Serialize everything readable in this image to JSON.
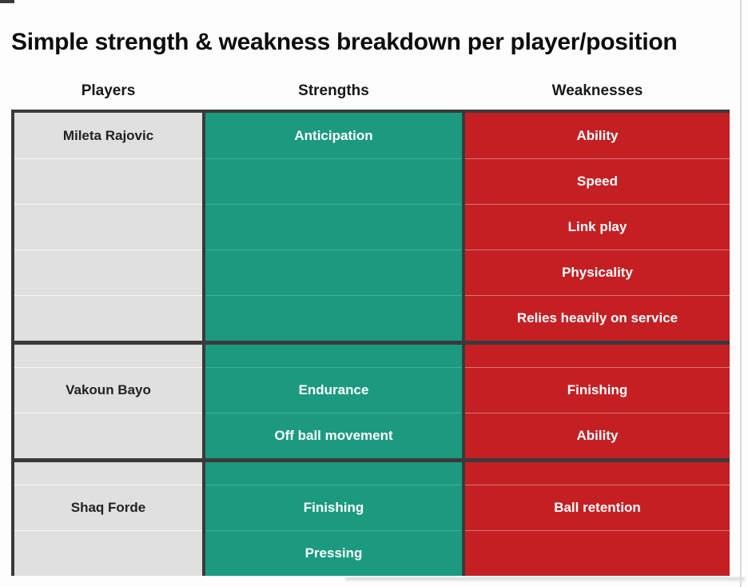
{
  "chart_data": {
    "type": "table",
    "title": "Simple strength & weakness breakdown per player/position",
    "columns": [
      "Players",
      "Strengths",
      "Weaknesses"
    ],
    "blocks": [
      {
        "rows": [
          {
            "player": "Mileta Rajovic",
            "strength": "Anticipation",
            "weakness": "Ability",
            "size": "normal"
          },
          {
            "player": "",
            "strength": "",
            "weakness": "Speed",
            "size": "normal"
          },
          {
            "player": "",
            "strength": "",
            "weakness": "Link play",
            "size": "normal"
          },
          {
            "player": "",
            "strength": "",
            "weakness": "Physicality",
            "size": "normal"
          },
          {
            "player": "",
            "strength": "",
            "weakness": "Relies heavily on service",
            "size": "normal"
          }
        ]
      },
      {
        "rows": [
          {
            "player": "",
            "strength": "",
            "weakness": "",
            "size": "short"
          },
          {
            "player": "Vakoun Bayo",
            "strength": "Endurance",
            "weakness": "Finishing",
            "size": "normal"
          },
          {
            "player": "",
            "strength": "Off ball movement",
            "weakness": "Ability",
            "size": "normal"
          }
        ]
      },
      {
        "rows": [
          {
            "player": "",
            "strength": "",
            "weakness": "",
            "size": "short"
          },
          {
            "player": "Shaq Forde",
            "strength": "Finishing",
            "weakness": "Ball retention",
            "size": "normal"
          },
          {
            "player": "",
            "strength": "Pressing",
            "weakness": "",
            "size": "normal"
          }
        ]
      }
    ]
  },
  "colors": {
    "strength": "#1b9a80",
    "weakness": "#c42024",
    "player_bg": "#e0e0e0",
    "border_dark": "#3a3a3b",
    "edge_line": "#dadada"
  }
}
